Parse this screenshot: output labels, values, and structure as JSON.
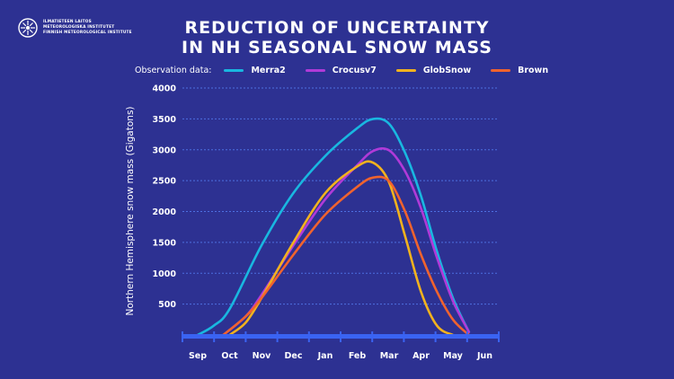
{
  "header": {
    "logo_lines": [
      "ILMATIETEEN LAITOS",
      "METEOROLOGISKA INSTITUTET",
      "FINNISH METEOROLOGICAL INSTITUTE"
    ],
    "title_line1": "REDUCTION OF UNCERTAINTY",
    "title_line2": "IN NH SEASONAL SNOW MASS"
  },
  "legend": {
    "label": "Observation data:"
  },
  "chart_data": {
    "type": "line",
    "title": "REDUCTION OF UNCERTAINTY IN NH SEASONAL SNOW MASS",
    "xlabel": "",
    "ylabel": "Northern Hemisphere snow mass (Gigatons)",
    "categories": [
      "Sep",
      "Oct",
      "Nov",
      "Dec",
      "Jan",
      "Feb",
      "Mar",
      "Apr",
      "May",
      "Jun"
    ],
    "yticks": [
      500,
      1000,
      1500,
      2000,
      2500,
      3000,
      3500,
      4000
    ],
    "ylim": [
      0,
      4000
    ],
    "grid": "horizontal-dashed",
    "legend_position": "top",
    "series": [
      {
        "name": "Merra2",
        "color": "#19b7e0",
        "points": [
          [
            0,
            0
          ],
          [
            0.5,
            150
          ],
          [
            1,
            420
          ],
          [
            2,
            1450
          ],
          [
            3,
            2300
          ],
          [
            4,
            2900
          ],
          [
            5,
            3350
          ],
          [
            5.5,
            3500
          ],
          [
            6,
            3420
          ],
          [
            6.5,
            2950
          ],
          [
            7,
            2250
          ],
          [
            7.5,
            1350
          ],
          [
            8,
            600
          ],
          [
            8.5,
            50
          ]
        ]
      },
      {
        "name": "Crocusv7",
        "color": "#b03ad8",
        "points": [
          [
            0.8,
            0
          ],
          [
            1.5,
            300
          ],
          [
            2,
            650
          ],
          [
            3,
            1450
          ],
          [
            4,
            2200
          ],
          [
            5,
            2750
          ],
          [
            5.5,
            2980
          ],
          [
            6,
            2990
          ],
          [
            6.5,
            2650
          ],
          [
            7,
            2050
          ],
          [
            7.5,
            1250
          ],
          [
            8,
            550
          ],
          [
            8.5,
            50
          ]
        ]
      },
      {
        "name": "GlobSnow",
        "color": "#f2b21e",
        "points": [
          [
            1,
            0
          ],
          [
            1.5,
            200
          ],
          [
            2,
            600
          ],
          [
            3,
            1500
          ],
          [
            4,
            2300
          ],
          [
            5,
            2730
          ],
          [
            5.5,
            2790
          ],
          [
            6,
            2470
          ],
          [
            6.5,
            1600
          ],
          [
            7,
            700
          ],
          [
            7.5,
            150
          ],
          [
            8,
            0
          ]
        ]
      },
      {
        "name": "Brown",
        "color": "#f0632e",
        "points": [
          [
            0.8,
            0
          ],
          [
            1.5,
            300
          ],
          [
            2,
            600
          ],
          [
            3,
            1300
          ],
          [
            4,
            1950
          ],
          [
            5,
            2400
          ],
          [
            5.5,
            2550
          ],
          [
            6,
            2490
          ],
          [
            6.5,
            2000
          ],
          [
            7,
            1300
          ],
          [
            7.5,
            700
          ],
          [
            8,
            250
          ],
          [
            8.5,
            0
          ]
        ]
      }
    ]
  }
}
